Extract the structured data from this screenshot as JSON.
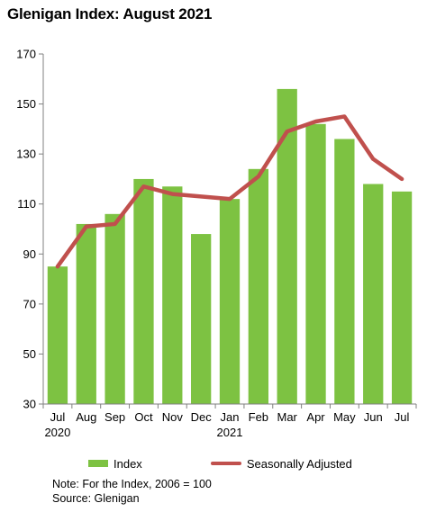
{
  "chart_data": {
    "type": "bar",
    "title": "Glenigan Index: August 2021",
    "categories": [
      "Jul",
      "Aug",
      "Sep",
      "Oct",
      "Nov",
      "Dec",
      "Jan",
      "Feb",
      "Mar",
      "Apr",
      "May",
      "Jun",
      "Jul"
    ],
    "year_labels": [
      "2020",
      "",
      "",
      "",
      "",
      "",
      "2021",
      "",
      "",
      "",
      "",
      "",
      ""
    ],
    "ylim": [
      30,
      170
    ],
    "yticks": [
      30,
      50,
      70,
      90,
      110,
      130,
      150,
      170
    ],
    "grid": false,
    "legend_position": "bottom",
    "series": [
      {
        "name": "Index",
        "type": "bar",
        "color": "#7dc242",
        "values": [
          85,
          102,
          106,
          120,
          117,
          98,
          112,
          124,
          156,
          142,
          136,
          118,
          115
        ]
      },
      {
        "name": "Seasonally Adjusted",
        "type": "line",
        "color": "#c0504d",
        "values": [
          85,
          101,
          102,
          117,
          114,
          113,
          112,
          121,
          139,
          143,
          145,
          128,
          120
        ]
      }
    ]
  },
  "notes": {
    "line1": "Note: For the Index, 2006 = 100",
    "line2": "Source: Glenigan"
  }
}
